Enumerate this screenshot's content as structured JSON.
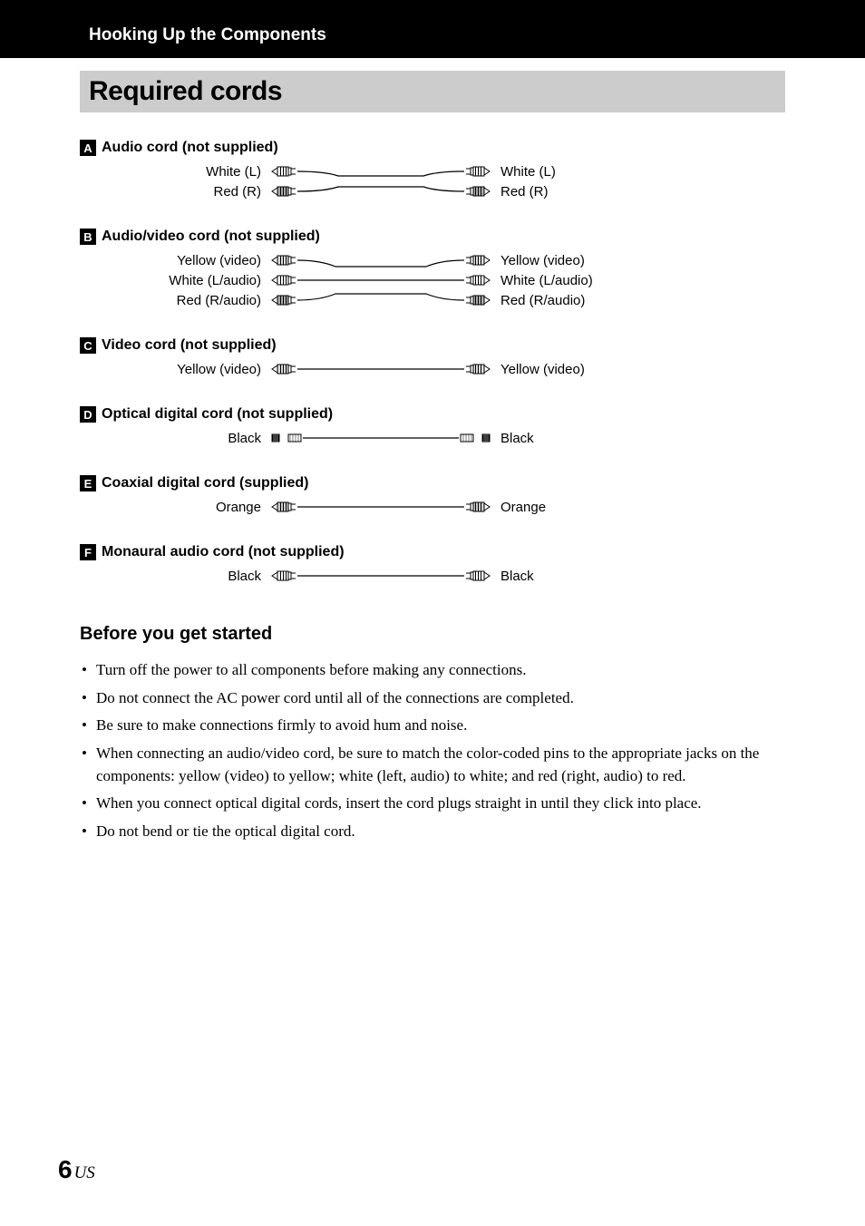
{
  "header": {
    "section_title": "Hooking Up the Components",
    "page_title": "Required cords"
  },
  "cords": [
    {
      "badge": "A",
      "title": "Audio cord (not supplied)",
      "type": "rca-pair",
      "lines": [
        {
          "left": "White (L)",
          "right": "White (L)",
          "color": "#ffffff",
          "stroke": "#000000"
        },
        {
          "left": "Red (R)",
          "right": "Red (R)",
          "color": "#aaaaaa",
          "stroke": "#000000"
        }
      ]
    },
    {
      "badge": "B",
      "title": "Audio/video cord (not supplied)",
      "type": "rca-triple",
      "lines": [
        {
          "left": "Yellow (video)",
          "right": "Yellow (video)",
          "color": "#dddddd",
          "stroke": "#000000"
        },
        {
          "left": "White (L/audio)",
          "right": "White (L/audio)",
          "color": "#ffffff",
          "stroke": "#000000"
        },
        {
          "left": "Red (R/audio)",
          "right": "Red (R/audio)",
          "color": "#aaaaaa",
          "stroke": "#000000"
        }
      ]
    },
    {
      "badge": "C",
      "title": "Video cord (not supplied)",
      "type": "rca-single",
      "lines": [
        {
          "left": "Yellow (video)",
          "right": "Yellow (video)",
          "color": "#dddddd",
          "stroke": "#000000"
        }
      ]
    },
    {
      "badge": "D",
      "title": "Optical digital cord (not supplied)",
      "type": "optical",
      "lines": [
        {
          "left": "Black",
          "right": "Black",
          "color": "#000000",
          "stroke": "#000000"
        }
      ]
    },
    {
      "badge": "E",
      "title": "Coaxial digital cord (supplied)",
      "type": "rca-single",
      "lines": [
        {
          "left": "Orange",
          "right": "Orange",
          "color": "#cccccc",
          "stroke": "#000000"
        }
      ]
    },
    {
      "badge": "F",
      "title": "Monaural audio cord (not supplied)",
      "type": "rca-single",
      "lines": [
        {
          "left": "Black",
          "right": "Black",
          "color": "#ffffff",
          "stroke": "#000000"
        }
      ]
    }
  ],
  "subheading": "Before you get started",
  "bullets": [
    "Turn off the power to all components before making any connections.",
    "Do not connect the AC power cord until all of the connections are completed.",
    "Be sure to make connections firmly to avoid hum and noise.",
    "When connecting an audio/video cord, be sure to match the color-coded pins to the appropriate jacks on the components: yellow (video) to yellow; white (left, audio) to white; and red (right, audio) to red.",
    "When you connect optical digital cords, insert the cord plugs straight in until they click into place.",
    "Do not bend or tie the optical digital cord."
  ],
  "footer": {
    "page_number": "6",
    "region": "US"
  },
  "colors": {
    "black": "#000000",
    "gray_bar": "#cccccc",
    "white": "#ffffff"
  }
}
